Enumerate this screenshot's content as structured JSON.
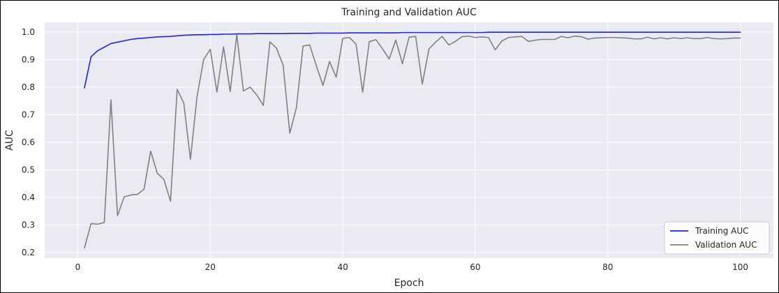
{
  "chart_data": {
    "type": "line",
    "title": "Training and Validation AUC",
    "xlabel": "Epoch",
    "ylabel": "AUC",
    "xlim": [
      -5,
      105
    ],
    "ylim": [
      0.18,
      1.035
    ],
    "xticks": [
      0,
      20,
      40,
      60,
      80,
      100
    ],
    "yticks": [
      0.2,
      0.3,
      0.4,
      0.5,
      0.6,
      0.7,
      0.8,
      0.9,
      1.0
    ],
    "ytick_labels": [
      "0.2",
      "0.3",
      "0.4",
      "0.5",
      "0.6",
      "0.7",
      "0.8",
      "0.9",
      "1.0"
    ],
    "grid": true,
    "legend_position": "lower-right",
    "background_color": "#eaeaf2",
    "x": [
      1,
      2,
      3,
      4,
      5,
      6,
      7,
      8,
      9,
      10,
      11,
      12,
      13,
      14,
      15,
      16,
      17,
      18,
      19,
      20,
      21,
      22,
      23,
      24,
      25,
      26,
      27,
      28,
      29,
      30,
      31,
      32,
      33,
      34,
      35,
      36,
      37,
      38,
      39,
      40,
      41,
      42,
      43,
      44,
      45,
      46,
      47,
      48,
      49,
      50,
      51,
      52,
      53,
      54,
      55,
      56,
      57,
      58,
      59,
      60,
      61,
      62,
      63,
      64,
      65,
      66,
      67,
      68,
      69,
      70,
      71,
      72,
      73,
      74,
      75,
      76,
      77,
      78,
      79,
      80,
      81,
      82,
      83,
      84,
      85,
      86,
      87,
      88,
      89,
      90,
      91,
      92,
      93,
      94,
      95,
      96,
      97,
      98,
      99,
      100
    ],
    "series": [
      {
        "name": "Training AUC",
        "color": "#1f1fff",
        "values": [
          0.797,
          0.91,
          0.932,
          0.945,
          0.958,
          0.963,
          0.968,
          0.973,
          0.976,
          0.978,
          0.98,
          0.982,
          0.983,
          0.984,
          0.986,
          0.988,
          0.989,
          0.99,
          0.99,
          0.991,
          0.991,
          0.992,
          0.992,
          0.993,
          0.993,
          0.993,
          0.994,
          0.994,
          0.994,
          0.994,
          0.994,
          0.995,
          0.995,
          0.995,
          0.995,
          0.996,
          0.996,
          0.996,
          0.996,
          0.996,
          0.997,
          0.997,
          0.997,
          0.997,
          0.997,
          0.997,
          0.997,
          0.997,
          0.998,
          0.998,
          0.998,
          0.998,
          0.998,
          0.998,
          0.998,
          0.998,
          0.998,
          0.998,
          0.998,
          0.998,
          0.998,
          0.999,
          0.999,
          0.999,
          0.999,
          0.999,
          0.999,
          0.999,
          0.999,
          0.999,
          0.999,
          0.999,
          0.999,
          0.999,
          0.999,
          0.999,
          0.999,
          0.999,
          0.999,
          0.999,
          0.999,
          0.999,
          0.999,
          0.999,
          0.999,
          0.999,
          0.999,
          0.999,
          0.999,
          0.999,
          0.999,
          0.999,
          0.999,
          0.999,
          0.999,
          0.999,
          0.999,
          0.999,
          0.999,
          0.999
        ]
      },
      {
        "name": "Validation AUC",
        "color": "#808080",
        "values": [
          0.217,
          0.305,
          0.303,
          0.309,
          0.754,
          0.334,
          0.402,
          0.409,
          0.411,
          0.43,
          0.568,
          0.488,
          0.465,
          0.386,
          0.792,
          0.742,
          0.538,
          0.766,
          0.9,
          0.937,
          0.782,
          0.946,
          0.784,
          0.99,
          0.786,
          0.8,
          0.772,
          0.734,
          0.964,
          0.941,
          0.879,
          0.633,
          0.726,
          0.949,
          0.953,
          0.878,
          0.806,
          0.893,
          0.836,
          0.977,
          0.98,
          0.956,
          0.782,
          0.965,
          0.972,
          0.939,
          0.902,
          0.971,
          0.885,
          0.981,
          0.984,
          0.811,
          0.938,
          0.963,
          0.984,
          0.953,
          0.966,
          0.983,
          0.985,
          0.98,
          0.982,
          0.98,
          0.935,
          0.967,
          0.98,
          0.982,
          0.984,
          0.966,
          0.97,
          0.973,
          0.973,
          0.973,
          0.984,
          0.979,
          0.985,
          0.983,
          0.974,
          0.978,
          0.979,
          0.98,
          0.98,
          0.979,
          0.978,
          0.975,
          0.975,
          0.981,
          0.975,
          0.979,
          0.975,
          0.979,
          0.976,
          0.979,
          0.976,
          0.976,
          0.98,
          0.976,
          0.975,
          0.976,
          0.978,
          0.978
        ]
      }
    ]
  }
}
